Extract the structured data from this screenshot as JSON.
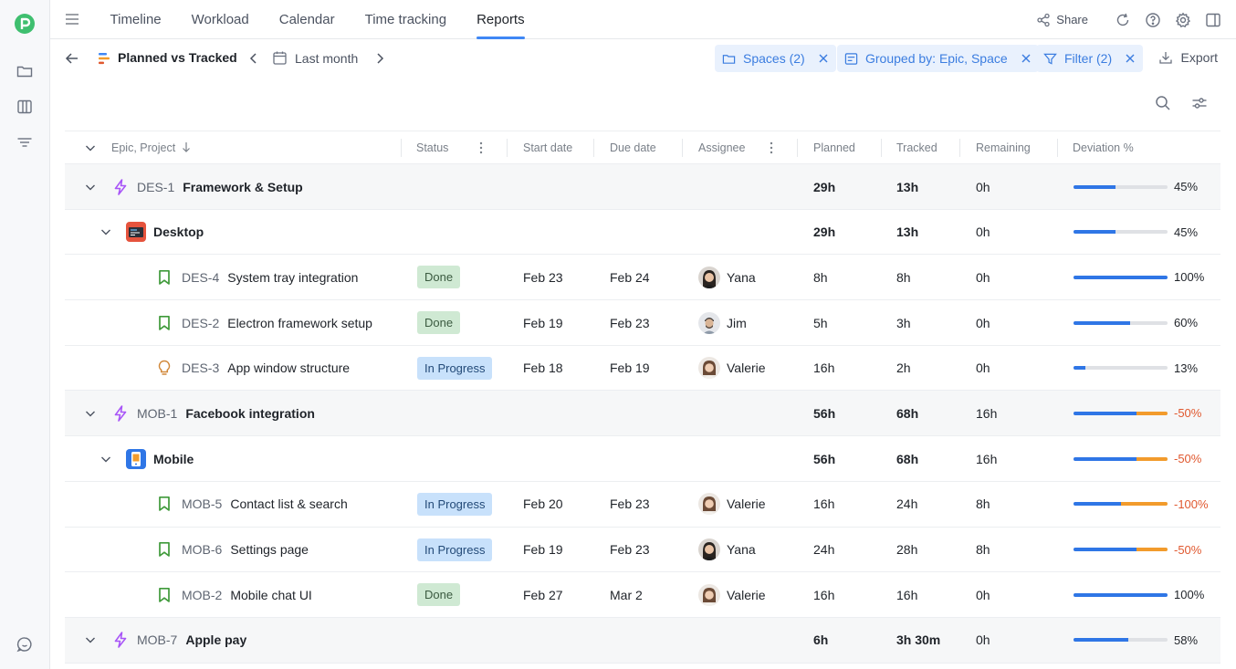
{
  "nav": {
    "tabs": [
      {
        "label": "Timeline",
        "active": false
      },
      {
        "label": "Workload",
        "active": false
      },
      {
        "label": "Calendar",
        "active": false
      },
      {
        "label": "Time tracking",
        "active": false
      },
      {
        "label": "Reports",
        "active": true
      }
    ],
    "share_label": "Share"
  },
  "toolbar": {
    "report_title": "Planned vs Tracked",
    "period": "Last month",
    "chips": [
      {
        "label": "Spaces (2)",
        "icon": "folder-icon"
      },
      {
        "label": "Grouped by: Epic, Space",
        "icon": "group-icon"
      },
      {
        "label": "Filter (2)",
        "icon": "filter-icon"
      }
    ],
    "export_label": "Export"
  },
  "table": {
    "columns": [
      "Epic, Project",
      "Status",
      "Start date",
      "Due date",
      "Assignee",
      "Planned",
      "Tracked",
      "Remaining",
      "Deviation %"
    ],
    "rows": [
      {
        "type": "epic",
        "key": "DES-1",
        "name": "Framework & Setup",
        "planned": "29h",
        "tracked": "13h",
        "remaining": "0h",
        "deviation": "45%",
        "progress": 0.45,
        "over": 0
      },
      {
        "type": "project",
        "icon": "desktop",
        "name": "Desktop",
        "planned": "29h",
        "tracked": "13h",
        "remaining": "0h",
        "deviation": "45%",
        "progress": 0.45,
        "over": 0
      },
      {
        "type": "task",
        "icon": "bookmark",
        "key": "DES-4",
        "name": "System tray integration",
        "status": "Done",
        "start": "Feb 23",
        "due": "Feb 24",
        "assignee": "Yana",
        "avatar": "yana",
        "planned": "8h",
        "tracked": "8h",
        "remaining": "0h",
        "deviation": "100%",
        "progress": 1.0,
        "over": 0
      },
      {
        "type": "task",
        "icon": "bookmark",
        "key": "DES-2",
        "name": "Electron framework setup",
        "status": "Done",
        "start": "Feb 19",
        "due": "Feb 23",
        "assignee": "Jim",
        "avatar": "jim",
        "planned": "5h",
        "tracked": "3h",
        "remaining": "0h",
        "deviation": "60%",
        "progress": 0.6,
        "over": 0
      },
      {
        "type": "task",
        "icon": "bulb",
        "key": "DES-3",
        "name": "App window structure",
        "status": "In Progress",
        "start": "Feb 18",
        "due": "Feb 19",
        "assignee": "Valerie",
        "avatar": "valerie",
        "planned": "16h",
        "tracked": "2h",
        "remaining": "0h",
        "deviation": "13%",
        "progress": 0.13,
        "over": 0
      },
      {
        "type": "epic",
        "key": "MOB-1",
        "name": "Facebook integration",
        "planned": "56h",
        "tracked": "68h",
        "remaining": "16h",
        "deviation": "-50%",
        "progress": 0.67,
        "over": 0.33
      },
      {
        "type": "project",
        "icon": "mobile",
        "name": "Mobile",
        "planned": "56h",
        "tracked": "68h",
        "remaining": "16h",
        "deviation": "-50%",
        "progress": 0.67,
        "over": 0.33
      },
      {
        "type": "task",
        "icon": "bookmark",
        "key": "MOB-5",
        "name": "Contact list & search",
        "status": "In Progress",
        "start": "Feb 20",
        "due": "Feb 23",
        "assignee": "Valerie",
        "avatar": "valerie",
        "planned": "16h",
        "tracked": "24h",
        "remaining": "8h",
        "deviation": "-100%",
        "progress": 0.5,
        "over": 0.5
      },
      {
        "type": "task",
        "icon": "bookmark",
        "key": "MOB-6",
        "name": "Settings page",
        "status": "In Progress",
        "start": "Feb 19",
        "due": "Feb 23",
        "assignee": "Yana",
        "avatar": "yana",
        "planned": "24h",
        "tracked": "28h",
        "remaining": "8h",
        "deviation": "-50%",
        "progress": 0.67,
        "over": 0.33
      },
      {
        "type": "task",
        "icon": "bookmark",
        "key": "MOB-2",
        "name": "Mobile chat UI",
        "status": "Done",
        "start": "Feb 27",
        "due": "Mar 2",
        "assignee": "Valerie",
        "avatar": "valerie",
        "planned": "16h",
        "tracked": "16h",
        "remaining": "0h",
        "deviation": "100%",
        "progress": 1.0,
        "over": 0
      },
      {
        "type": "epic",
        "key": "MOB-7",
        "name": "Apple pay",
        "planned": "6h",
        "tracked": "3h 30m",
        "remaining": "0h",
        "deviation": "58%",
        "progress": 0.58,
        "over": 0
      }
    ]
  },
  "colors": {
    "accent": "#3f87f5",
    "bar_blue": "#2f76e6",
    "bar_orange": "#f29b2c",
    "negative": "#e0582f",
    "done_bg": "#cfe9d3",
    "progress_bg": "#c8e1fb"
  }
}
